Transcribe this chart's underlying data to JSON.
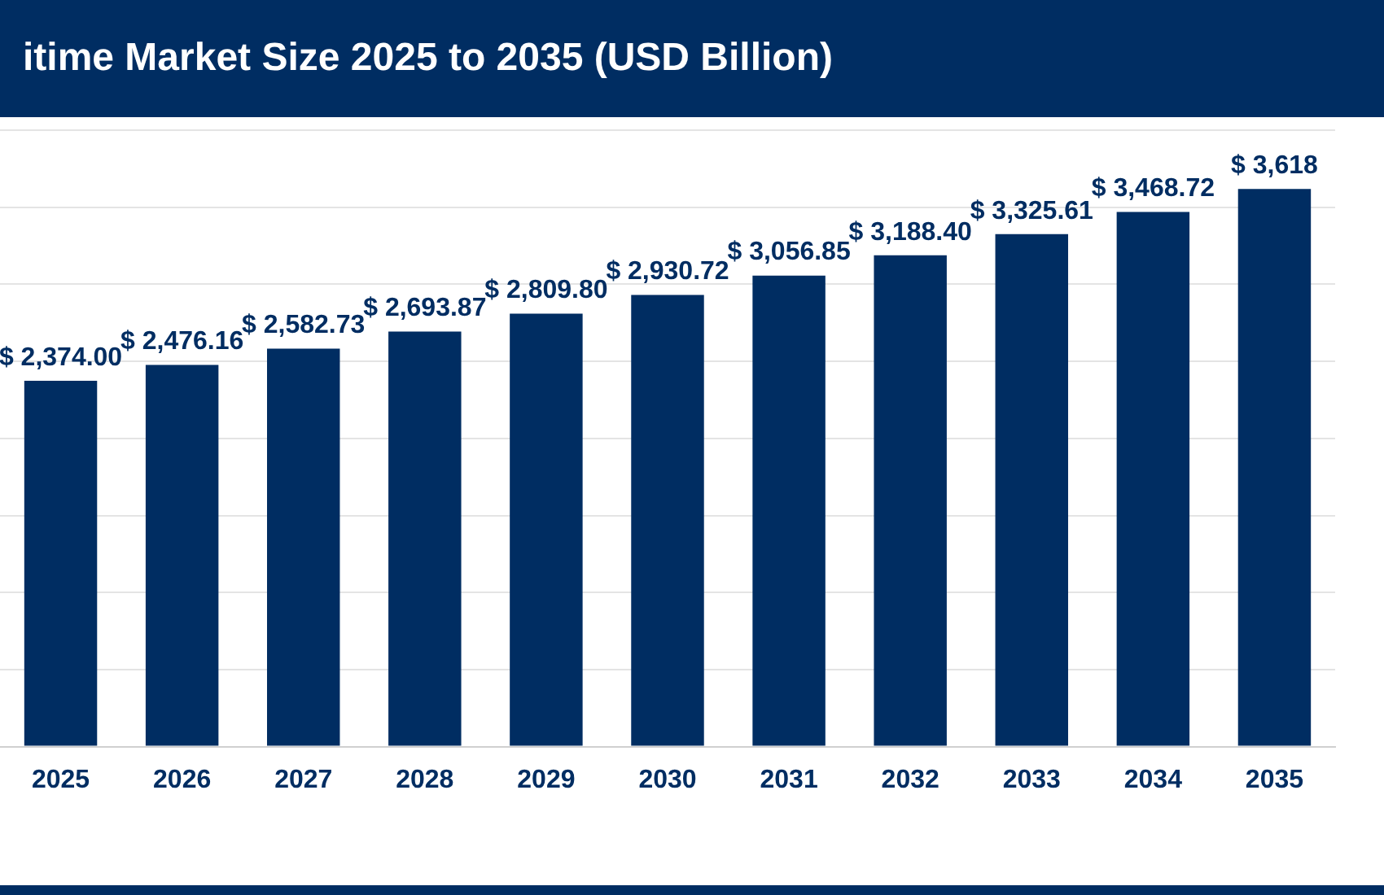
{
  "chart_data": {
    "type": "bar",
    "title": "itime Market Size 2025 to 2035 (USD Billion)",
    "categories": [
      "2025",
      "2026",
      "2027",
      "2028",
      "2029",
      "2030",
      "2031",
      "2032",
      "2033",
      "2034",
      "2035"
    ],
    "values": [
      2374.0,
      2476.16,
      2582.73,
      2693.87,
      2809.8,
      2930.72,
      3056.85,
      3188.4,
      3325.61,
      3468.72,
      3618
    ],
    "value_labels": [
      "$ 2,374.00",
      "$ 2,476.16",
      "$ 2,582.73",
      "$ 2,693.87",
      "$ 2,809.80",
      "$ 2,930.72",
      "$ 3,056.85",
      "$ 3,188.40",
      "$ 3,325.61",
      "$ 3,468.72",
      "$ 3,618"
    ],
    "color": "#002d62",
    "ylim": [
      0,
      4000
    ],
    "yticks": [
      {
        "value": 0,
        "label": null
      },
      {
        "value": 500,
        "label": null
      },
      {
        "value": 1000,
        "label": null
      },
      {
        "value": 1500,
        "label": null
      },
      {
        "value": 2000,
        "label": null
      },
      {
        "value": 2500,
        "label": null
      },
      {
        "value": 3000,
        "label": null
      },
      {
        "value": 3500,
        "label": null
      },
      {
        "value": 4000,
        "label": null
      }
    ],
    "grid": "y",
    "tick_labels": "x"
  }
}
